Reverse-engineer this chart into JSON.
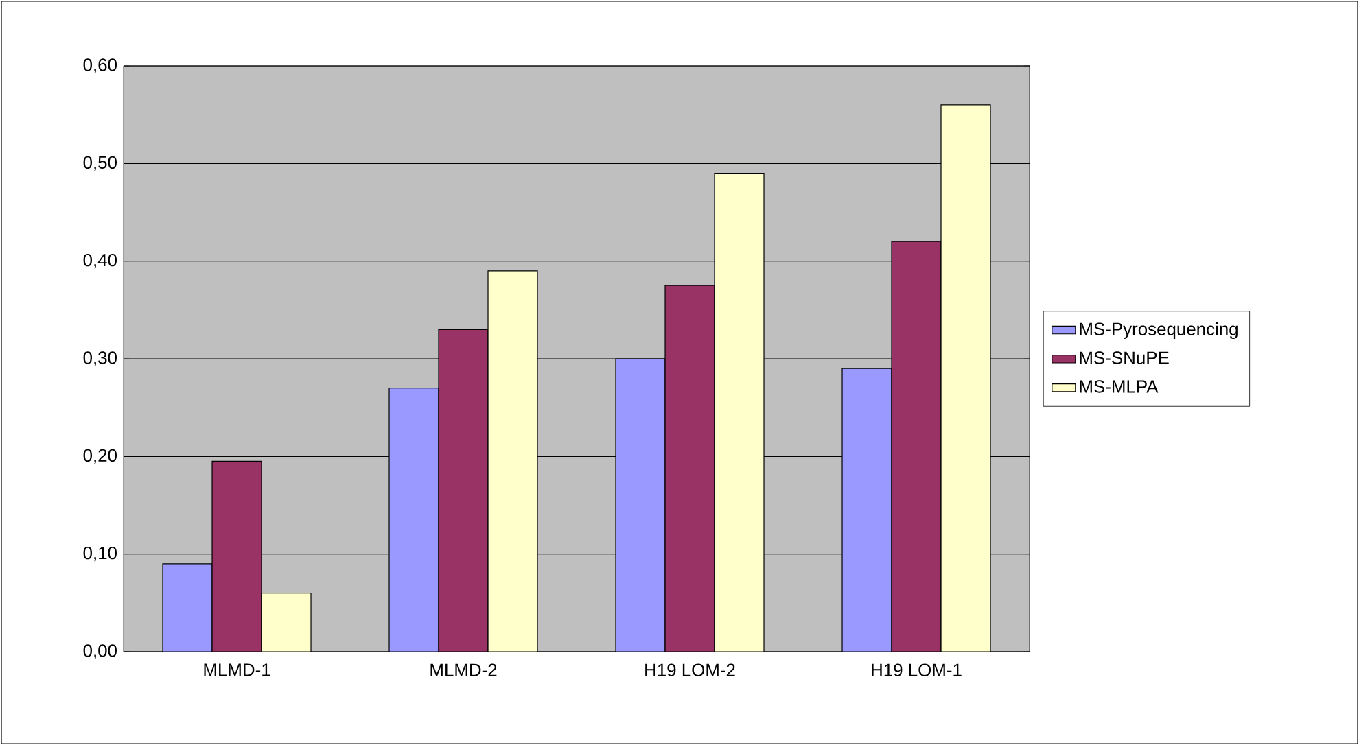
{
  "chart_data": {
    "type": "bar",
    "categories": [
      "MLMD-1",
      "MLMD-2",
      "H19 LOM-2",
      "H19 LOM-1"
    ],
    "series": [
      {
        "name": "MS-Pyrosequencing",
        "color": "#9999ff",
        "values": [
          0.09,
          0.27,
          0.3,
          0.29
        ]
      },
      {
        "name": "MS-SNuPE",
        "color": "#993366",
        "values": [
          0.195,
          0.33,
          0.375,
          0.42
        ]
      },
      {
        "name": "MS-MLPA",
        "color": "#ffffcc",
        "values": [
          0.06,
          0.39,
          0.49,
          0.56
        ]
      }
    ],
    "ylim": [
      0,
      0.6
    ],
    "yticks": [
      {
        "value": 0,
        "label": "0,00"
      },
      {
        "value": 0.1,
        "label": "0,10"
      },
      {
        "value": 0.2,
        "label": "0,20"
      },
      {
        "value": 0.3,
        "label": "0,30"
      },
      {
        "value": 0.4,
        "label": "0,40"
      },
      {
        "value": 0.5,
        "label": "0,50"
      },
      {
        "value": 0.6,
        "label": "0,60"
      }
    ],
    "grid": "y",
    "legend": "right"
  }
}
